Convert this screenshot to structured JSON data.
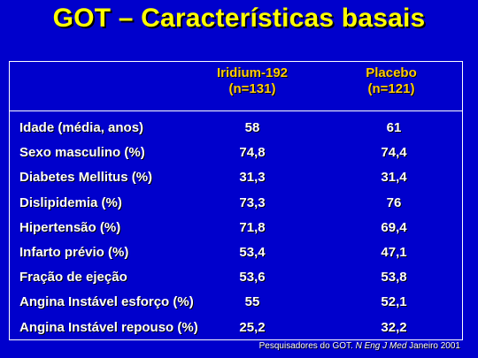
{
  "title": "GOT – Características basais",
  "columns": [
    {
      "name": "Iridium-192",
      "n": "(n=131)"
    },
    {
      "name": "Placebo",
      "n": "(n=121)"
    }
  ],
  "rows": [
    {
      "label": "Idade (média, anos)",
      "iridium": "58",
      "placebo": "61"
    },
    {
      "label": "Sexo masculino (%)",
      "iridium": "74,8",
      "placebo": "74,4"
    },
    {
      "label": "Diabetes Mellitus (%)",
      "iridium": "31,3",
      "placebo": "31,4"
    },
    {
      "label": "Dislipidemia (%)",
      "iridium": "73,3",
      "placebo": "76"
    },
    {
      "label": "Hipertensão (%)",
      "iridium": "71,8",
      "placebo": "69,4"
    },
    {
      "label": "Infarto prévio (%)",
      "iridium": "53,4",
      "placebo": "47,1"
    },
    {
      "label": "Fração de ejeção",
      "iridium": "53,6",
      "placebo": "53,8"
    },
    {
      "label": "Angina Instável esforço (%)",
      "iridium": "55",
      "placebo": "52,1"
    },
    {
      "label": "Angina Instável repouso (%)",
      "iridium": "25,2",
      "placebo": "32,2"
    }
  ],
  "footer": {
    "prefix": "Pesquisadores do GOT. ",
    "journal": "N Eng J Med",
    "suffix": " Janeiro 2001"
  },
  "colors": {
    "background": "#0000cc",
    "title": "#ffff00",
    "column_headers": "#ffcc00",
    "text": "#ffffff"
  }
}
